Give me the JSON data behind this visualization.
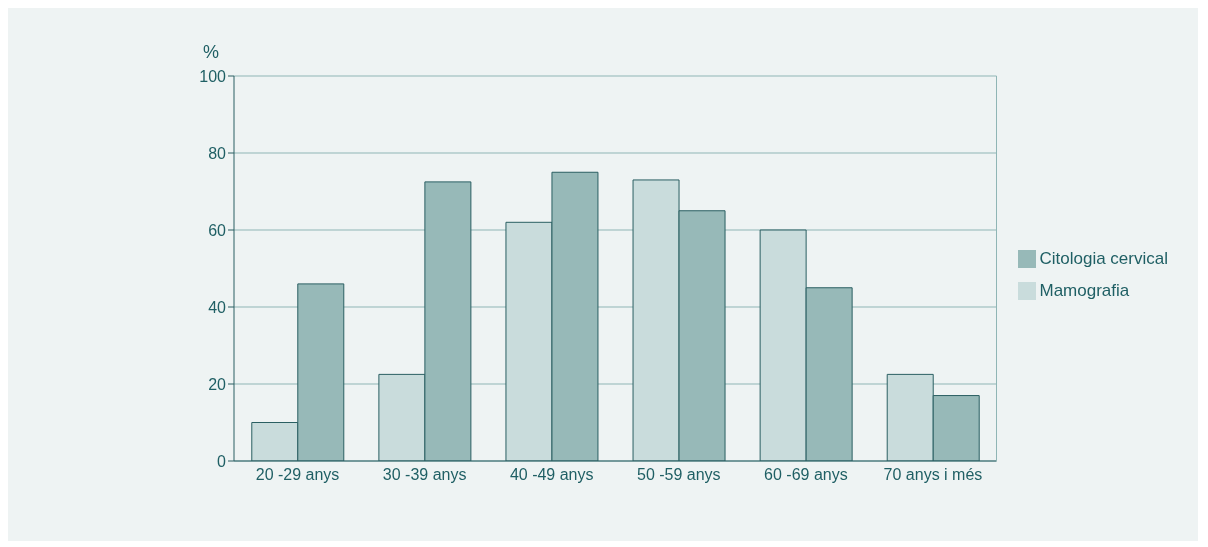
{
  "chart_data": {
    "type": "bar",
    "ylabel": "%",
    "categories": [
      "20 -29 anys",
      "30 -39 anys",
      "40 -49 anys",
      "50 -59 anys",
      "60 -69 anys",
      "70 anys i més"
    ],
    "series": [
      {
        "name": "Mamografia",
        "color": "#c9dcdc",
        "values": [
          10,
          22.5,
          62,
          73,
          60,
          22.5
        ]
      },
      {
        "name": "Citologia cervical",
        "color": "#97b9b8",
        "values": [
          46,
          72.5,
          75,
          65,
          45,
          17
        ]
      }
    ],
    "ylim": [
      0,
      100
    ],
    "yticks": [
      0,
      20,
      40,
      60,
      80,
      100
    ],
    "grid": "y",
    "legend": "right"
  }
}
